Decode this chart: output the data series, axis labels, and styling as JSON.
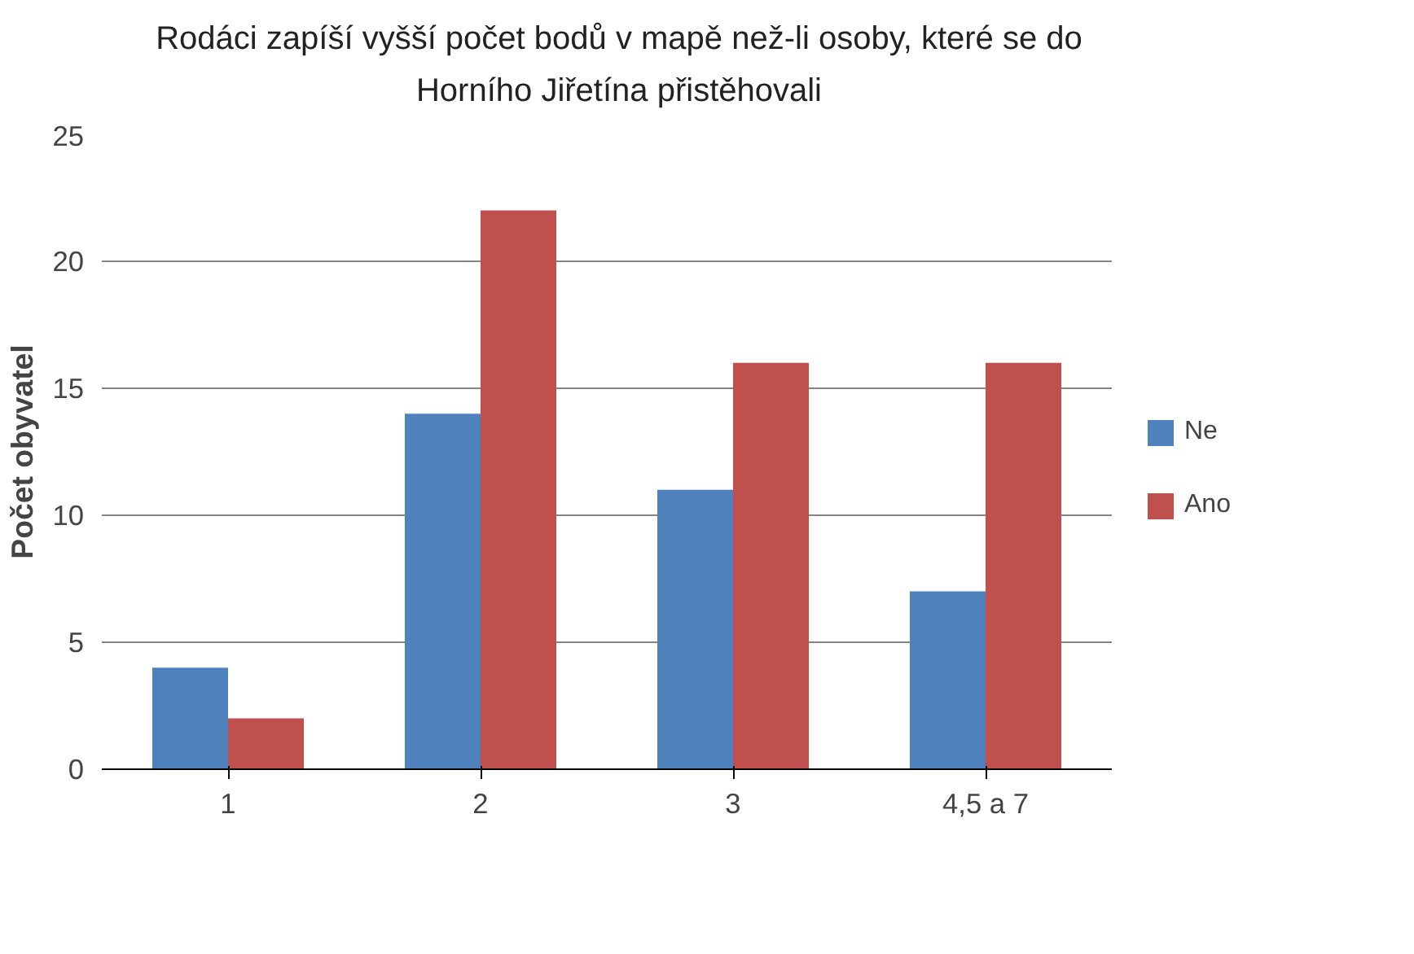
{
  "chart_data": {
    "type": "bar",
    "title": "Rodáci zapíší vyšší počet bodů v mapě než-li osoby, které se do Horního Jiřetína přistěhovali",
    "ylabel": "Počet obyvatel",
    "categories": [
      "1",
      "2",
      "3",
      "4,5 a 7"
    ],
    "series": [
      {
        "name": "Ne",
        "color": "#4f81bd",
        "values": [
          4,
          14,
          11,
          7
        ]
      },
      {
        "name": "Ano",
        "color": "#c0504d",
        "values": [
          2,
          22,
          16,
          16
        ]
      }
    ],
    "ylim": [
      0,
      25
    ],
    "yticks": [
      0,
      5,
      10,
      15,
      20,
      25
    ],
    "grid": "y",
    "legend": "right"
  }
}
